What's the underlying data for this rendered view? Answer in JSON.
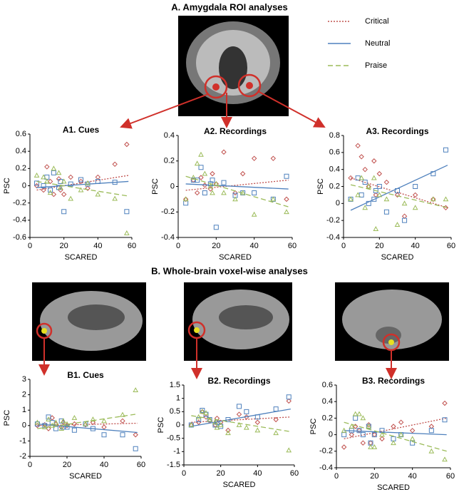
{
  "headings": [
    "A. Amygdala ROI analyses",
    "B. Whole-brain voxel-wise analyses"
  ],
  "chart_data": [
    {
      "type": "scatter",
      "title": "A1. Cues",
      "x_label": "SCARED",
      "y_label": "PSC",
      "xlim": [
        0,
        60
      ],
      "xticks": [
        0,
        20,
        40,
        60
      ],
      "ylim": [
        -0.6,
        0.6
      ],
      "yticks": [
        -0.6,
        -0.4,
        -0.2,
        0,
        0.2,
        0.4,
        0.6
      ],
      "x": [
        4,
        8,
        10,
        12,
        14,
        17,
        18,
        20,
        24,
        30,
        34,
        40,
        50,
        57
      ],
      "fit_x": [
        4,
        58
      ],
      "series": [
        {
          "name": "Critical",
          "color": "#c0504d",
          "marker": "diamond",
          "line_style": "dotted",
          "values": [
            0,
            -0.05,
            0.22,
            0.05,
            -0.1,
            0.08,
            -0.05,
            -0.1,
            0.1,
            0.05,
            -0.03,
            0.1,
            0.25,
            0.48
          ],
          "trend": [
            -0.05,
            0.12
          ]
        },
        {
          "name": "Neutral",
          "color": "#4f81bd",
          "marker": "square",
          "line_style": "solid",
          "values": [
            0.03,
            0,
            0.1,
            -0.05,
            0.15,
            -0.02,
            0.05,
            -0.3,
            0.02,
            0.07,
            0.02,
            0.05,
            0.04,
            -0.3
          ],
          "trend": [
            -0.02,
            0.05
          ]
        },
        {
          "name": "Praise",
          "color": "#9bbb59",
          "marker": "triangle",
          "line_style": "dashed",
          "values": [
            0.12,
            0.1,
            0.05,
            -0.08,
            0.2,
            0.15,
            -0.02,
            0.05,
            -0.15,
            -0.05,
            0.03,
            -0.1,
            -0.15,
            -0.55
          ],
          "trend": [
            0.05,
            -0.12
          ]
        }
      ]
    },
    {
      "type": "scatter",
      "title": "A2. Recordings",
      "x_label": "SCARED",
      "y_label": "PSC",
      "xlim": [
        0,
        60
      ],
      "xticks": [
        0,
        20,
        40,
        60
      ],
      "ylim": [
        -0.4,
        0.4
      ],
      "yticks": [
        -0.4,
        -0.2,
        0,
        0.2,
        0.4
      ],
      "x": [
        4,
        8,
        10,
        12,
        14,
        17,
        18,
        20,
        24,
        30,
        34,
        40,
        50,
        57
      ],
      "fit_x": [
        4,
        58
      ],
      "series": [
        {
          "name": "Critical",
          "color": "#c0504d",
          "marker": "diamond",
          "line_style": "dotted",
          "values": [
            -0.1,
            0.05,
            -0.05,
            0.07,
            0.01,
            -0.02,
            0.1,
            0.02,
            0.27,
            -0.05,
            0.1,
            0.22,
            0.22,
            -0.1
          ],
          "trend": [
            -0.03,
            0.05
          ]
        },
        {
          "name": "Neutral",
          "color": "#4f81bd",
          "marker": "square",
          "line_style": "solid",
          "values": [
            -0.13,
            0.05,
            0.05,
            0.15,
            -0.05,
            0.02,
            0.05,
            -0.32,
            0.03,
            -0.07,
            -0.05,
            -0.05,
            -0.1,
            0.08
          ],
          "trend": [
            0.02,
            -0.02
          ]
        },
        {
          "name": "Praise",
          "color": "#9bbb59",
          "marker": "triangle",
          "line_style": "dashed",
          "values": [
            -0.1,
            0.07,
            0.18,
            0.25,
            0.1,
            0,
            -0.05,
            0.02,
            -0.05,
            -0.1,
            -0.05,
            -0.22,
            -0.1,
            -0.2
          ],
          "trend": [
            0.08,
            -0.16
          ]
        }
      ]
    },
    {
      "type": "scatter",
      "title": "A3. Recordings",
      "x_label": "SCARED",
      "y_label": "PSC",
      "xlim": [
        0,
        60
      ],
      "xticks": [
        0,
        20,
        40,
        60
      ],
      "ylim": [
        -0.4,
        0.8
      ],
      "yticks": [
        -0.4,
        -0.2,
        0,
        0.2,
        0.4,
        0.6,
        0.8
      ],
      "x": [
        4,
        8,
        10,
        12,
        14,
        17,
        18,
        20,
        24,
        30,
        34,
        40,
        50,
        57
      ],
      "fit_x": [
        4,
        58
      ],
      "series": [
        {
          "name": "Critical",
          "color": "#c0504d",
          "marker": "diamond",
          "line_style": "dotted",
          "values": [
            0.3,
            0.68,
            0.55,
            0.4,
            0.2,
            0.5,
            0.1,
            0.35,
            0.25,
            0.1,
            -0.15,
            0.1,
            0.05,
            -0.05
          ],
          "trend": [
            0.3,
            -0.05
          ]
        },
        {
          "name": "Neutral",
          "color": "#4f81bd",
          "marker": "square",
          "line_style": "solid",
          "values": [
            0.05,
            0.3,
            0.1,
            0.25,
            0,
            0.05,
            0.15,
            0.2,
            -0.1,
            0.15,
            -0.2,
            0.2,
            0.35,
            0.63
          ],
          "trend": [
            -0.08,
            0.45
          ]
        },
        {
          "name": "Praise",
          "color": "#9bbb59",
          "marker": "triangle",
          "line_style": "dashed",
          "values": [
            0.05,
            0.1,
            0.3,
            -0.05,
            0.2,
            0.3,
            -0.3,
            0.1,
            0.05,
            -0.25,
            0,
            -0.05,
            0.05,
            0.05
          ],
          "trend": [
            0.22,
            -0.05
          ]
        }
      ]
    },
    {
      "type": "scatter",
      "title": "B1. Cues",
      "x_label": "SCARED",
      "y_label": "PSC",
      "xlim": [
        0,
        60
      ],
      "xticks": [
        0,
        20,
        40,
        60
      ],
      "ylim": [
        -2,
        3
      ],
      "yticks": [
        -2,
        -1,
        0,
        1,
        2,
        3
      ],
      "x": [
        4,
        8,
        10,
        12,
        14,
        17,
        18,
        20,
        24,
        30,
        34,
        40,
        50,
        57
      ],
      "fit_x": [
        4,
        58
      ],
      "series": [
        {
          "name": "Critical",
          "color": "#c0504d",
          "marker": "diamond",
          "line_style": "dotted",
          "values": [
            0,
            0.05,
            -0.2,
            0.5,
            0.1,
            -0.1,
            0.2,
            0,
            0.1,
            0.05,
            0.2,
            -0.1,
            0.3,
            -0.6
          ],
          "trend": [
            0,
            0.15
          ]
        },
        {
          "name": "Neutral",
          "color": "#4f81bd",
          "marker": "square",
          "line_style": "solid",
          "values": [
            0.1,
            0,
            0.55,
            0.2,
            -0.2,
            0.3,
            -0.1,
            -0.1,
            -0.3,
            0.1,
            -0.2,
            -0.6,
            -0.6,
            -1.5
          ],
          "trend": [
            0.1,
            -0.45
          ]
        },
        {
          "name": "Praise",
          "color": "#9bbb59",
          "marker": "triangle",
          "line_style": "dashed",
          "values": [
            0.2,
            -0.1,
            0.4,
            0,
            0.2,
            -0.2,
            0.3,
            0.1,
            0.5,
            0.1,
            0.4,
            0.3,
            0.7,
            2.3
          ],
          "trend": [
            -0.2,
            0.75
          ]
        }
      ]
    },
    {
      "type": "scatter",
      "title": "B2. Recordings",
      "x_label": "SCARED",
      "y_label": "PSC",
      "xlim": [
        0,
        60
      ],
      "xticks": [
        0,
        20,
        40,
        60
      ],
      "ylim": [
        -1.5,
        1.5
      ],
      "yticks": [
        -1.5,
        -1,
        -0.5,
        0,
        0.5,
        1,
        1.5
      ],
      "x": [
        4,
        8,
        10,
        12,
        14,
        17,
        18,
        20,
        24,
        30,
        34,
        40,
        50,
        57
      ],
      "fit_x": [
        4,
        58
      ],
      "series": [
        {
          "name": "Critical",
          "color": "#c0504d",
          "marker": "diamond",
          "line_style": "dotted",
          "values": [
            0,
            0.1,
            0.5,
            0.3,
            0.15,
            0,
            0.25,
            0.1,
            -0.2,
            0.4,
            0.3,
            0.1,
            0.2,
            0.9
          ],
          "trend": [
            0.1,
            0.3
          ]
        },
        {
          "name": "Neutral",
          "color": "#4f81bd",
          "marker": "square",
          "line_style": "solid",
          "values": [
            0,
            0.2,
            0.55,
            0.4,
            0.2,
            0,
            0.1,
            -0.05,
            0.2,
            0.7,
            0.5,
            0.3,
            0.6,
            1.05
          ],
          "trend": [
            -0.05,
            0.6
          ]
        },
        {
          "name": "Praise",
          "color": "#9bbb59",
          "marker": "triangle",
          "line_style": "dashed",
          "values": [
            0,
            0.3,
            0.5,
            0.45,
            0.2,
            0.1,
            -0.1,
            0,
            -0.3,
            0,
            -0.1,
            -0.2,
            -0.3,
            -0.95
          ],
          "trend": [
            0.35,
            -0.25
          ]
        }
      ]
    },
    {
      "type": "scatter",
      "title": "B3. Recordings",
      "x_label": "SCARED",
      "y_label": "PSC",
      "xlim": [
        0,
        60
      ],
      "xticks": [
        0,
        20,
        40,
        60
      ],
      "ylim": [
        -0.4,
        0.6
      ],
      "yticks": [
        -0.4,
        -0.2,
        0,
        0.2,
        0.4,
        0.6
      ],
      "x": [
        4,
        8,
        10,
        12,
        14,
        17,
        18,
        20,
        24,
        30,
        34,
        40,
        50,
        57
      ],
      "fit_x": [
        4,
        58
      ],
      "series": [
        {
          "name": "Critical",
          "color": "#c0504d",
          "marker": "diamond",
          "line_style": "dotted",
          "values": [
            -0.15,
            0,
            0.1,
            0.05,
            -0.1,
            0.12,
            -0.1,
            0,
            -0.05,
            0.1,
            0.15,
            0.05,
            0.1,
            0.38
          ],
          "trend": [
            -0.05,
            0.2
          ]
        },
        {
          "name": "Neutral",
          "color": "#4f81bd",
          "marker": "square",
          "line_style": "solid",
          "values": [
            0,
            0.05,
            0.2,
            0.05,
            0,
            0.1,
            -0.1,
            0,
            0.05,
            -0.05,
            0,
            -0.1,
            0.05,
            0.18
          ],
          "trend": [
            0.05,
            0
          ]
        },
        {
          "name": "Praise",
          "color": "#9bbb59",
          "marker": "triangle",
          "line_style": "dashed",
          "values": [
            0.05,
            0.1,
            0.25,
            0.25,
            0.2,
            0.1,
            -0.15,
            -0.15,
            0,
            -0.1,
            0,
            -0.05,
            -0.2,
            -0.3
          ],
          "trend": [
            0.15,
            -0.2
          ]
        }
      ]
    }
  ]
}
